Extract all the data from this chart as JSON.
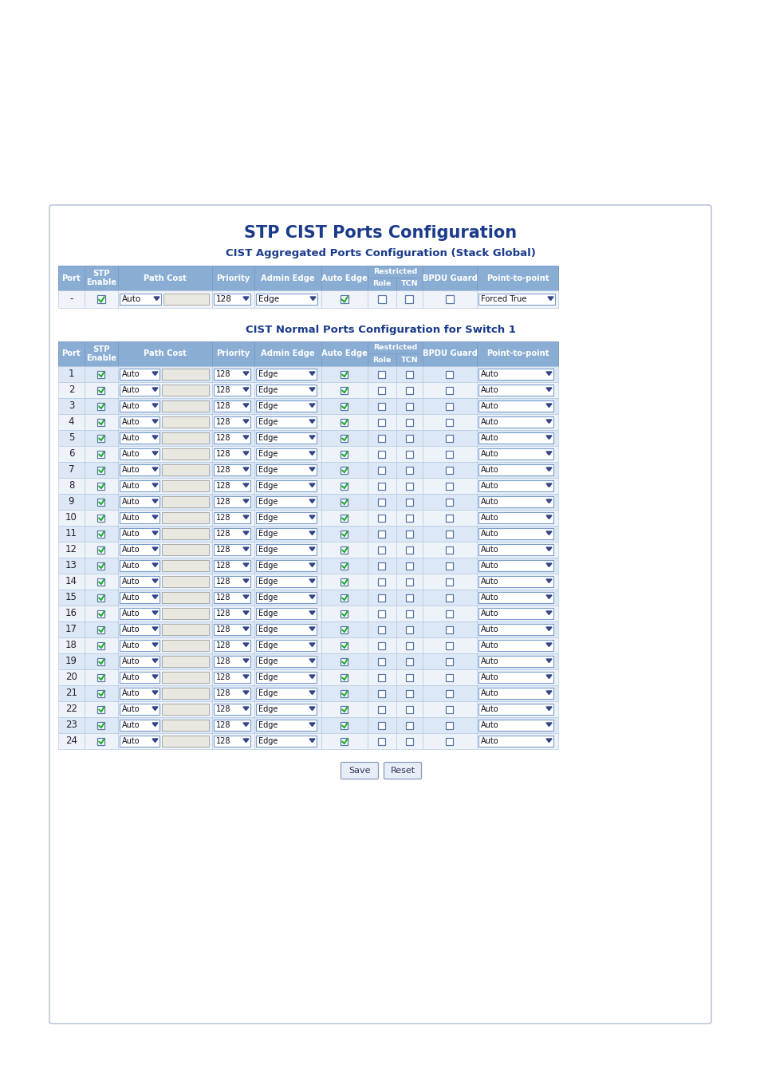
{
  "title": "STP CIST Ports Configuration",
  "subtitle1": "CIST Aggregated Ports Configuration (Stack Global)",
  "subtitle2": "CIST Normal Ports Configuration for Switch 1",
  "header_bg": "#8aadd4",
  "header_fg": "#ffffff",
  "row_bg_odd": "#dce8f5",
  "row_bg_even": "#eef3fa",
  "agg_row_bg": "#f0f4fa",
  "table_border": "#7a9cc9",
  "cell_border": "#aec4de",
  "title_color": "#1a3a8a",
  "subtitle_color": "#1a3a8a",
  "page_bg": "#ffffff",
  "frame_bg": "#ffffff",
  "frame_border": "#b0bcd0",
  "dropdown_border": "#7a9cc9",
  "checkbox_border": "#5577aa",
  "checkbox_check": "#22aa33",
  "num_ports": 24,
  "buttons": [
    "Save",
    "Reset"
  ]
}
